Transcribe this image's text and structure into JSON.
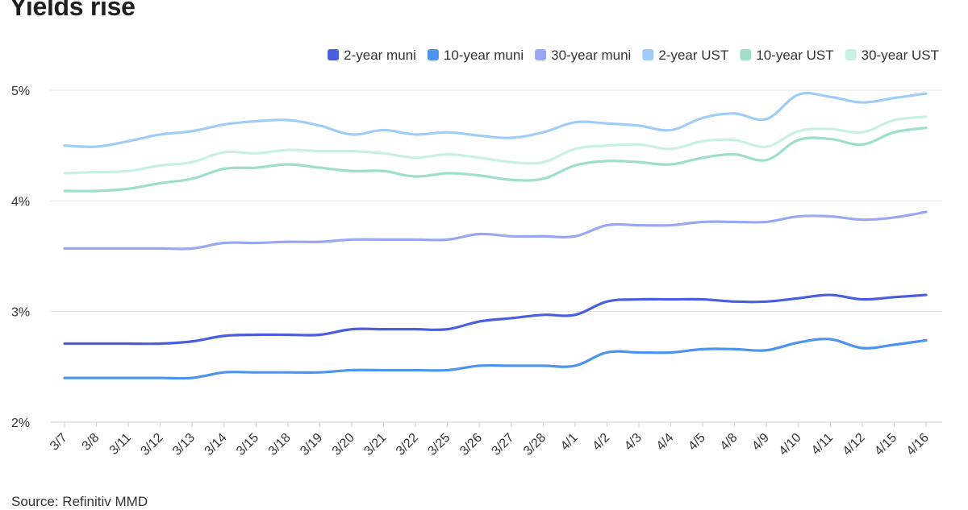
{
  "title": "Yields rise",
  "source": "Source: Refinitiv MMD",
  "chart_data": {
    "type": "line",
    "title": "Yields rise",
    "xlabel": "",
    "ylabel": "",
    "ylim": [
      2,
      5
    ],
    "yticks": [
      "2%",
      "3%",
      "4%",
      "5%"
    ],
    "grid": true,
    "legend_position": "top-right",
    "categories": [
      "3/7",
      "3/8",
      "3/11",
      "3/12",
      "3/13",
      "3/14",
      "3/15",
      "3/18",
      "3/19",
      "3/20",
      "3/21",
      "3/22",
      "3/25",
      "3/26",
      "3/27",
      "3/28",
      "4/1",
      "4/2",
      "4/3",
      "4/4",
      "4/5",
      "4/8",
      "4/9",
      "4/10",
      "4/11",
      "4/12",
      "4/15",
      "4/16"
    ],
    "series": [
      {
        "name": "2-year muni",
        "color": "#4a5fe0",
        "values": [
          2.71,
          2.71,
          2.71,
          2.71,
          2.73,
          2.78,
          2.79,
          2.79,
          2.79,
          2.84,
          2.84,
          2.84,
          2.84,
          2.91,
          2.94,
          2.97,
          2.97,
          3.09,
          3.11,
          3.11,
          3.11,
          3.09,
          3.09,
          3.12,
          3.15,
          3.11,
          3.13,
          3.15
        ]
      },
      {
        "name": "10-year muni",
        "color": "#4c94ee",
        "values": [
          2.4,
          2.4,
          2.4,
          2.4,
          2.4,
          2.45,
          2.45,
          2.45,
          2.45,
          2.47,
          2.47,
          2.47,
          2.47,
          2.51,
          2.51,
          2.51,
          2.51,
          2.63,
          2.63,
          2.63,
          2.66,
          2.66,
          2.65,
          2.72,
          2.75,
          2.67,
          2.7,
          2.74
        ]
      },
      {
        "name": "30-year muni",
        "color": "#9aa8f4",
        "values": [
          3.57,
          3.57,
          3.57,
          3.57,
          3.57,
          3.62,
          3.62,
          3.63,
          3.63,
          3.65,
          3.65,
          3.65,
          3.65,
          3.7,
          3.68,
          3.68,
          3.68,
          3.78,
          3.78,
          3.78,
          3.81,
          3.81,
          3.81,
          3.86,
          3.86,
          3.83,
          3.85,
          3.9
        ]
      },
      {
        "name": "2-year UST",
        "color": "#9fcdf8",
        "values": [
          4.5,
          4.49,
          4.54,
          4.6,
          4.63,
          4.69,
          4.72,
          4.73,
          4.68,
          4.6,
          4.64,
          4.6,
          4.62,
          4.59,
          4.57,
          4.62,
          4.71,
          4.7,
          4.68,
          4.64,
          4.75,
          4.79,
          4.74,
          4.96,
          4.94,
          4.89,
          4.93,
          4.97
        ]
      },
      {
        "name": "10-year UST",
        "color": "#9fdfc9",
        "values": [
          4.09,
          4.09,
          4.11,
          4.16,
          4.2,
          4.29,
          4.3,
          4.33,
          4.3,
          4.27,
          4.27,
          4.22,
          4.25,
          4.23,
          4.19,
          4.2,
          4.32,
          4.36,
          4.35,
          4.33,
          4.39,
          4.42,
          4.37,
          4.55,
          4.56,
          4.51,
          4.62,
          4.66
        ]
      },
      {
        "name": "30-year UST",
        "color": "#c7f1e3",
        "values": [
          4.25,
          4.26,
          4.27,
          4.32,
          4.35,
          4.44,
          4.43,
          4.46,
          4.45,
          4.45,
          4.43,
          4.39,
          4.42,
          4.39,
          4.35,
          4.35,
          4.47,
          4.5,
          4.51,
          4.47,
          4.54,
          4.55,
          4.49,
          4.63,
          4.65,
          4.62,
          4.73,
          4.76
        ]
      }
    ]
  }
}
